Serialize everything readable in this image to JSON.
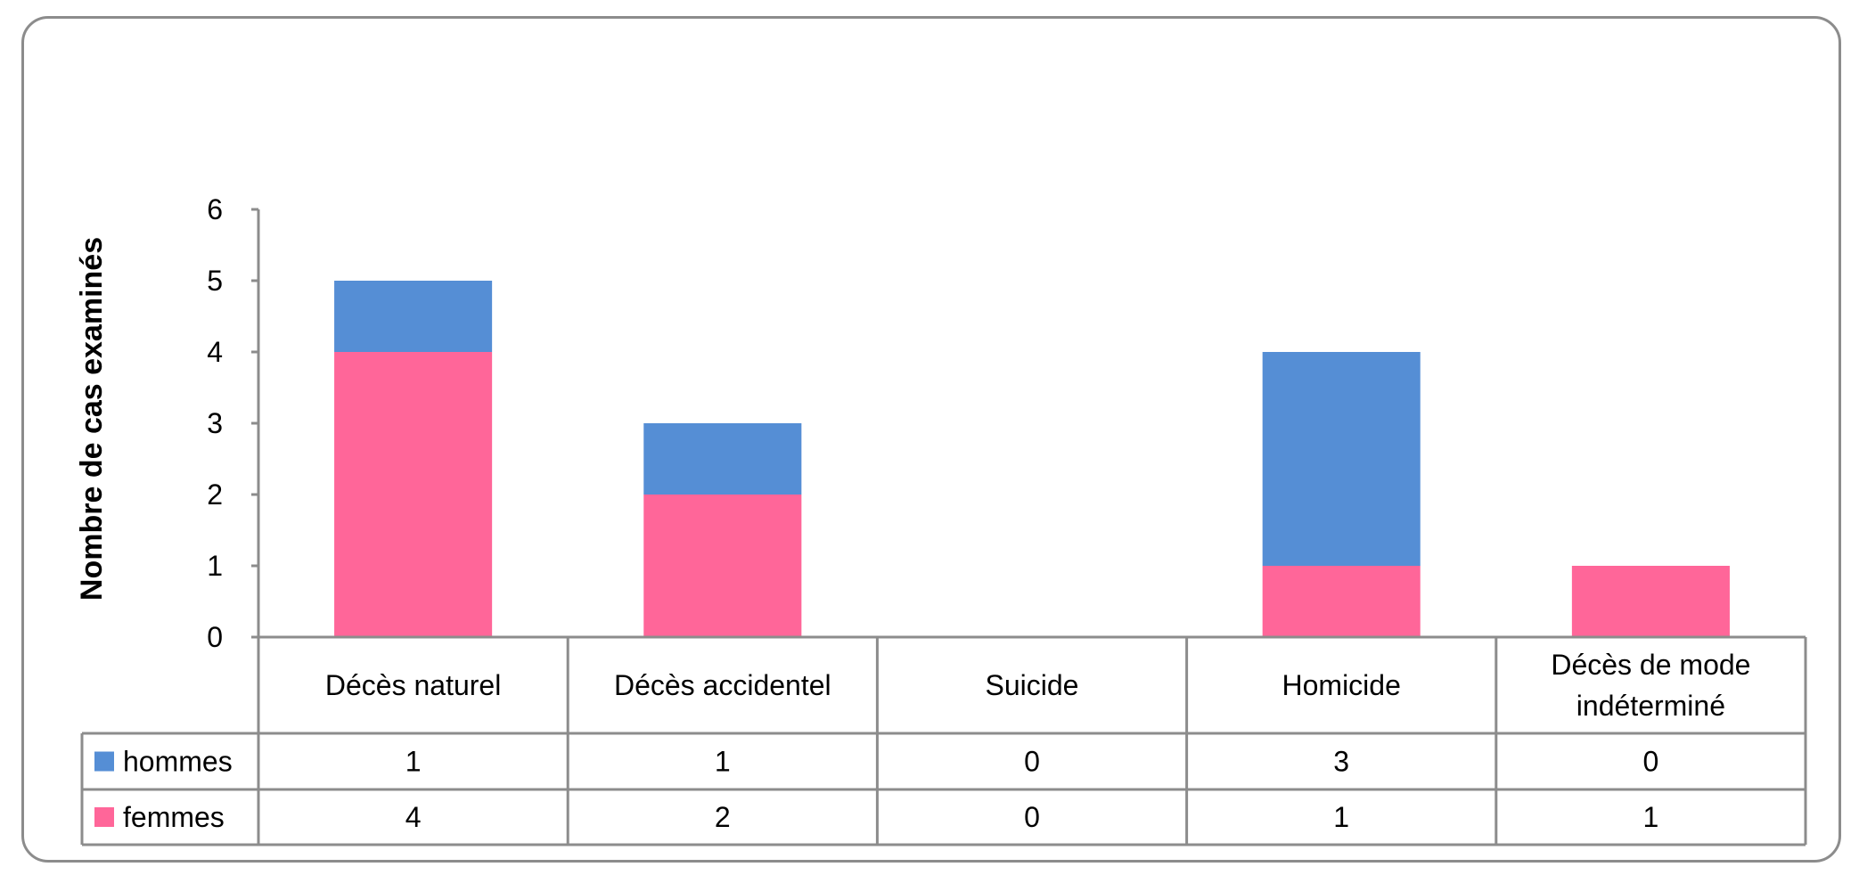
{
  "chart_data": {
    "type": "bar",
    "stacked": true,
    "title": "",
    "xlabel": "",
    "ylabel": "Nombre de cas examinés",
    "ylim": [
      0,
      6
    ],
    "yticks": [
      "0",
      "1",
      "2",
      "3",
      "4",
      "5",
      "6"
    ],
    "grid": false,
    "legend": "data-table",
    "categories": [
      [
        "Décès naturel"
      ],
      [
        "Décès accidentel"
      ],
      [
        "Suicide"
      ],
      [
        "Homicide"
      ],
      [
        "Décès de mode",
        "indéterminé"
      ]
    ],
    "series": [
      {
        "name": "hommes",
        "color": "#558ed5",
        "values": [
          1,
          1,
          0,
          3,
          0
        ],
        "labels": [
          "1",
          "1",
          "0",
          "3",
          "0"
        ]
      },
      {
        "name": "femmes",
        "color": "#ff6699",
        "values": [
          4,
          2,
          0,
          1,
          1
        ],
        "labels": [
          "4",
          "2",
          "0",
          "1",
          "1"
        ]
      }
    ]
  }
}
